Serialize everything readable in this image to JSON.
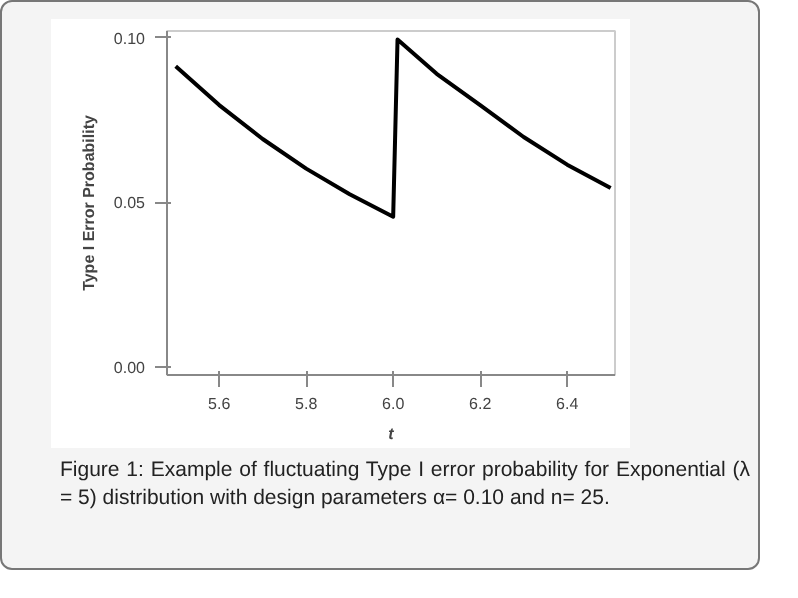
{
  "chart_data": {
    "type": "line",
    "xlabel": "t",
    "ylabel": "Type I Error Probability",
    "series": [
      {
        "color": "#000000",
        "x": [
          5.5,
          5.6,
          5.7,
          5.8,
          5.9,
          6.0,
          6.01,
          6.1,
          6.2,
          6.3,
          6.4,
          6.5
        ],
        "values": [
          0.0913,
          0.0795,
          0.0692,
          0.0602,
          0.0524,
          0.0456,
          0.0994,
          0.089,
          0.0795,
          0.0698,
          0.0614,
          0.0543
        ]
      }
    ],
    "xlim": [
      5.48,
      6.51
    ],
    "ylim": [
      -0.0025,
      0.102
    ],
    "xticks": [
      5.6,
      5.8,
      {
        "value": 6.0,
        "label": "6.0"
      },
      6.2,
      6.4
    ],
    "yticks": [
      {
        "value": 0,
        "label": "0.00"
      },
      {
        "value": 0.05,
        "label": "0.05"
      },
      {
        "value": 0.1,
        "label": "0.10"
      }
    ],
    "grid": false,
    "line_style": "solid",
    "marker": "none",
    "annotations": [
      "Figure 1: Example of fluctuating Type I error probability for Exponential (λ = 5) distribution with design parameters α= 0.10 and n= 25."
    ]
  }
}
